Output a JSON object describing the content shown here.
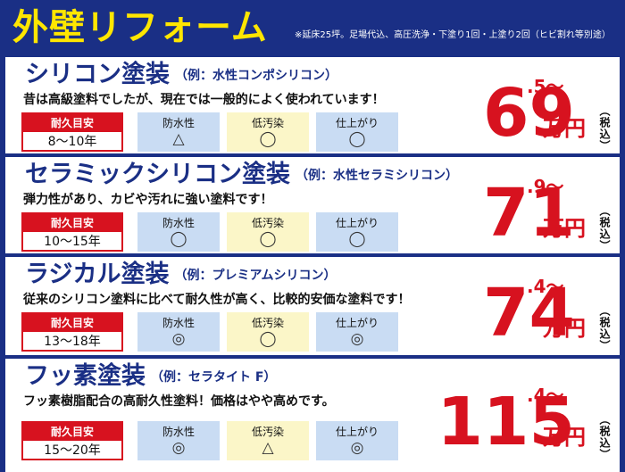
{
  "header": {
    "title": "外壁リフォーム",
    "note": "※延床25坪。足場代込、高圧洗浄・下塗り1回・上塗り2回（ヒビ割れ等別途）"
  },
  "labels": {
    "durability": "耐久目安",
    "waterproof": "防水性",
    "lowstain": "低汚染",
    "finish": "仕上がり",
    "unit": "万円",
    "tax": "（税込）"
  },
  "plans": [
    {
      "name": "シリコン塗装",
      "example": "（例：水性コンポシリコン）",
      "desc": "昔は高級塗料でしたが、現在では一般的によく使われています！",
      "durability": "8〜10年",
      "waterproof": "△",
      "lowstain": "◯",
      "finish": "◯",
      "price_main": "69",
      "price_decimal": ".5〜"
    },
    {
      "name": "セラミックシリコン塗装",
      "example": "（例：水性セラミシリコン）",
      "desc": "弾力性があり、カビや汚れに強い塗料です！",
      "durability": "10〜15年",
      "waterproof": "◯",
      "lowstain": "◯",
      "finish": "◯",
      "price_main": "71",
      "price_decimal": ".9〜"
    },
    {
      "name": "ラジカル塗装",
      "example": "（例：プレミアムシリコン）",
      "desc": "従来のシリコン塗料に比べて耐久性が高く、比較的安価な塗料です！",
      "durability": "13〜18年",
      "waterproof": "◎",
      "lowstain": "◯",
      "finish": "◎",
      "price_main": "74",
      "price_decimal": ".4〜"
    },
    {
      "name": "フッ素塗装",
      "example": "（例：セラタイト F）",
      "desc": "フッ素樹脂配合の高耐久性塗料！価格はやや高めです。",
      "durability": "15〜20年",
      "waterproof": "◎",
      "lowstain": "△",
      "finish": "◎",
      "price_main": "115",
      "price_decimal": ".4〜"
    }
  ],
  "colors": {
    "navy": "#1a2f85",
    "yellow": "#ffe600",
    "red": "#d7121f",
    "light_blue": "#c9dcf3",
    "light_yellow": "#fbf6c8"
  }
}
